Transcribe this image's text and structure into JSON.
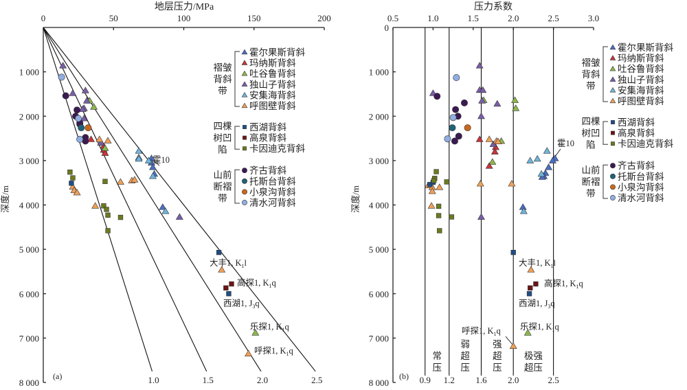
{
  "chart_data": [
    {
      "panel": "(a)",
      "type": "scatter",
      "title": "",
      "xlabel": "地层压力/MPa",
      "ylabel": "深度/m",
      "xlim": [
        0,
        200
      ],
      "ylim": [
        0,
        8000
      ],
      "y_inverted": true,
      "x_axis_position": "top",
      "xticks": [
        0,
        50,
        100,
        150,
        200
      ],
      "yticks": [
        1000,
        2000,
        3000,
        4000,
        5000,
        6000,
        7000,
        8000
      ],
      "ytick_labels": [
        "1 000",
        "2 000",
        "3 000",
        "4 000",
        "5 000",
        "6 000",
        "7 000",
        "8 000"
      ],
      "grid": false,
      "reference_lines": {
        "description": "pressure coefficient lines (MPa = coef × depth/100)",
        "coefficients": [
          1.0,
          1.5,
          2.0,
          2.5
        ],
        "labels": [
          "1.0",
          "1.5",
          "2.0",
          "2.5"
        ]
      },
      "annotations": [
        {
          "text": "霍10",
          "x": 76,
          "y": 2950
        },
        {
          "text_main": "大丰1, K",
          "sub": "1",
          "tail": "l",
          "x": 121,
          "y": 5460
        },
        {
          "text_main": "高探1, K",
          "sub": "1",
          "tail": "q",
          "x": 134,
          "y": 5780
        },
        {
          "text_main": "西湖1, J",
          "sub": "3",
          "tail": "q",
          "x": 132,
          "y": 6000
        },
        {
          "text_main": "乐探1, K",
          "sub": "1",
          "tail": "q",
          "x": 150,
          "y": 6880
        },
        {
          "text_main": "呼探1, K",
          "sub": "1",
          "tail": "q",
          "x": 146,
          "y": 7350
        }
      ],
      "series": [
        {
          "name": "霍尔果斯背斜",
          "group": "褶皱背斜带",
          "marker": "triangle",
          "color": "#4a6fc4",
          "points": [
            [
              77,
              2950
            ],
            [
              77,
              3050
            ],
            [
              78,
              3150
            ],
            [
              79,
              3300
            ],
            [
              85,
              4050
            ]
          ]
        },
        {
          "name": "玛纳斯背斜",
          "group": "褶皱背斜带",
          "marker": "triangle",
          "color": "#c8343c",
          "points": [
            [
              34,
              2520
            ],
            [
              43,
              2760
            ],
            [
              44,
              2830
            ],
            [
              43,
              2670
            ]
          ]
        },
        {
          "name": "吐谷鲁背斜",
          "group": "褶皱背斜带",
          "marker": "triangle",
          "color": "#8cb84c",
          "points": [
            [
              33,
              1650
            ],
            [
              36,
              1790
            ],
            [
              44,
              2720
            ],
            [
              151,
              6880
            ]
          ]
        },
        {
          "name": "独山子背斜",
          "group": "褶皱背斜带",
          "marker": "triangle",
          "color": "#7a5ea8",
          "points": [
            [
              14,
              860
            ],
            [
              21,
              1480
            ],
            [
              30,
              1420
            ],
            [
              31,
              1650
            ],
            [
              29,
              1820
            ],
            [
              28,
              1840
            ],
            [
              41,
              2600
            ],
            [
              29,
              2050
            ],
            [
              97,
              4270
            ]
          ]
        },
        {
          "name": "安集海背斜",
          "group": "褶皱背斜带",
          "marker": "triangle",
          "color": "#6fb4dc",
          "points": [
            [
              68,
              2780
            ],
            [
              68,
              2930
            ],
            [
              68,
              2960
            ],
            [
              75,
              3000
            ],
            [
              78,
              3350
            ],
            [
              87,
              4140
            ]
          ]
        },
        {
          "name": "呼图壁背斜",
          "group": "褶皱背斜带",
          "marker": "triangle",
          "color": "#f0a058",
          "points": [
            [
              40,
              2520
            ],
            [
              46,
              2550
            ],
            [
              55,
              3480
            ],
            [
              63,
              3450
            ],
            [
              65,
              3430
            ],
            [
              21,
              3590
            ],
            [
              22,
              3670
            ],
            [
              24,
              3720
            ],
            [
              37,
              4020
            ],
            [
              127,
              5460
            ],
            [
              146,
              7350
            ]
          ]
        },
        {
          "name": "西湖背斜",
          "group": "四棵树凹陷",
          "marker": "square",
          "color": "#1f4e86",
          "points": [
            [
              20,
              3510
            ],
            [
              125,
              5070
            ],
            [
              132,
              6000
            ]
          ]
        },
        {
          "name": "高泉背斜",
          "group": "四棵树凹陷",
          "marker": "square",
          "color": "#6e1414",
          "points": [
            [
              130,
              5870
            ],
            [
              134,
              5780
            ]
          ]
        },
        {
          "name": "卡因迪克背斜",
          "group": "四棵树凹陷",
          "marker": "square",
          "color": "#6b7a1e",
          "points": [
            [
              19,
              3260
            ],
            [
              21,
              3390
            ],
            [
              44,
              3470
            ],
            [
              43,
              4020
            ],
            [
              46,
              4230
            ],
            [
              55,
              4280
            ],
            [
              46,
              4580
            ],
            [
              45,
              4100
            ]
          ]
        },
        {
          "name": "齐古背斜",
          "group": "山前断褶带",
          "marker": "circle",
          "color": "#3b1a52",
          "points": [
            [
              16,
              1540
            ],
            [
              24,
              1860
            ],
            [
              23,
              2000
            ],
            [
              26,
              2180
            ],
            [
              30,
              2480
            ],
            [
              30,
              2560
            ],
            [
              26,
              2150
            ]
          ]
        },
        {
          "name": "托斯台背斜",
          "group": "山前断褶带",
          "marker": "circle",
          "color": "#1f6378",
          "points": [
            [
              27,
              2260
            ]
          ]
        },
        {
          "name": "小泉沟背斜",
          "group": "山前断褶带",
          "marker": "circle",
          "color": "#c8681e",
          "points": [
            [
              32,
              2260
            ]
          ]
        },
        {
          "name": "清水河背斜",
          "group": "山前断褶带",
          "marker": "circle",
          "color": "#90aee0",
          "points": [
            [
              13,
              1120
            ],
            [
              25,
              2050
            ],
            [
              26,
              2520
            ]
          ]
        }
      ]
    },
    {
      "panel": "(b)",
      "type": "scatter",
      "title": "",
      "xlabel": "压力系数",
      "ylabel": "深度/m",
      "xlim": [
        0.5,
        3.0
      ],
      "ylim": [
        0,
        8000
      ],
      "y_inverted": true,
      "x_axis_position": "top",
      "xticks": [
        0.5,
        1.0,
        1.5,
        2.0,
        2.5,
        3.0
      ],
      "xtick_labels": [
        "0.5",
        "1.0",
        "1.5",
        "2.0",
        "2.5",
        "3.0"
      ],
      "yticks": [
        0,
        1000,
        2000,
        3000,
        4000,
        5000,
        6000,
        7000,
        8000
      ],
      "ytick_labels": [
        "0",
        "1 000",
        "2 000",
        "3 000",
        "4 000",
        "5 000",
        "6 000",
        "7 000",
        "8 000"
      ],
      "grid": false,
      "boundary_lines": [
        0.9,
        1.2,
        1.6,
        2.0,
        2.5
      ],
      "boundary_labels": [
        "0.9",
        "1.2",
        "1.6",
        "2.0",
        "2.5"
      ],
      "zones": [
        {
          "label": "常压",
          "lines": [
            "常",
            "压"
          ],
          "range": [
            0.9,
            1.2
          ]
        },
        {
          "label": "弱超压",
          "lines": [
            "弱",
            "超",
            "压"
          ],
          "range": [
            1.2,
            1.6
          ]
        },
        {
          "label": "强超压",
          "lines": [
            "强",
            "超",
            "压"
          ],
          "range": [
            1.6,
            2.0
          ]
        },
        {
          "label": "极强超压",
          "lines": [
            "极强",
            "超压"
          ],
          "range": [
            2.0,
            2.5
          ]
        }
      ],
      "annotations": [
        {
          "text": "霍10",
          "x": 2.55,
          "y": 2950
        },
        {
          "text_main": "大丰1, K",
          "sub": "1",
          "tail": "l",
          "x": 2.22,
          "y": 5460
        },
        {
          "text_main": "高探1, K",
          "sub": "1",
          "tail": "q",
          "x": 2.32,
          "y": 5780
        },
        {
          "text_main": "西湖1, J",
          "sub": "3",
          "tail": "q",
          "x": 2.2,
          "y": 6000
        },
        {
          "text_main": "乐探1, K",
          "sub": "1",
          "tail": "q",
          "x": 2.2,
          "y": 6880
        },
        {
          "text_main": "呼探1, K",
          "sub": "1",
          "tail": "q",
          "x": 2.0,
          "y": 7180
        }
      ],
      "series": [
        {
          "name": "霍尔果斯背斜",
          "group": "褶皱背斜带",
          "marker": "triangle",
          "color": "#4a6fc4",
          "points": [
            [
              2.52,
              2950
            ],
            [
              2.49,
              3000
            ],
            [
              2.44,
              3150
            ],
            [
              2.4,
              3280
            ],
            [
              2.38,
              3350
            ],
            [
              2.36,
              3370
            ],
            [
              2.12,
              4050
            ]
          ]
        },
        {
          "name": "玛纳斯背斜",
          "group": "褶皱背斜带",
          "marker": "triangle",
          "color": "#c8343c",
          "points": [
            [
              1.58,
              2520
            ],
            [
              1.78,
              2700
            ],
            [
              1.77,
              2800
            ],
            [
              1.7,
              3120
            ]
          ]
        },
        {
          "name": "吐谷鲁背斜",
          "group": "褶皱背斜带",
          "marker": "triangle",
          "color": "#8cb84c",
          "points": [
            [
              1.63,
              1640
            ],
            [
              2.02,
              1640
            ],
            [
              2.03,
              1820
            ],
            [
              1.85,
              2560
            ],
            [
              1.74,
              3030
            ],
            [
              2.18,
              6880
            ]
          ]
        },
        {
          "name": "独山子背斜",
          "group": "褶皱背斜带",
          "marker": "triangle",
          "color": "#7a5ea8",
          "points": [
            [
              1.58,
              860
            ],
            [
              1.0,
              1480
            ],
            [
              1.58,
              1410
            ],
            [
              1.62,
              1410
            ],
            [
              1.61,
              1650
            ],
            [
              1.8,
              1720
            ],
            [
              1.6,
              2000
            ],
            [
              1.75,
              2630
            ],
            [
              1.6,
              4270
            ]
          ]
        },
        {
          "name": "安集海背斜",
          "group": "褶皱背斜带",
          "marker": "triangle",
          "color": "#6fb4dc",
          "points": [
            [
              2.42,
              2780
            ],
            [
              2.3,
              2960
            ],
            [
              2.21,
              3000
            ],
            [
              2.35,
              3300
            ],
            [
              2.13,
              4140
            ]
          ]
        },
        {
          "name": "呼图壁背斜",
          "group": "褶皱背斜带",
          "marker": "triangle",
          "color": "#f0a058",
          "points": [
            [
              1.7,
              2520
            ],
            [
              1.79,
              2560
            ],
            [
              1.81,
              2570
            ],
            [
              0.94,
              3560
            ],
            [
              0.99,
              3600
            ],
            [
              0.99,
              3690
            ],
            [
              1.08,
              3600
            ],
            [
              1.59,
              3520
            ],
            [
              1.98,
              3520
            ],
            [
              0.98,
              4020
            ],
            [
              2.22,
              5460
            ],
            [
              2.0,
              7180
            ]
          ]
        },
        {
          "name": "西湖背斜",
          "group": "四棵树凹陷",
          "marker": "square",
          "color": "#1f4e86",
          "points": [
            [
              0.96,
              3540
            ],
            [
              1.0,
              3490
            ],
            [
              2.0,
              5070
            ],
            [
              2.2,
              6000
            ]
          ]
        },
        {
          "name": "高泉背斜",
          "group": "四棵树凹陷",
          "marker": "square",
          "color": "#6e1414",
          "points": [
            [
              2.21,
              5870
            ],
            [
              2.28,
              5780
            ]
          ]
        },
        {
          "name": "卡因迪克背斜",
          "group": "四棵树凹陷",
          "marker": "square",
          "color": "#6b7a1e",
          "points": [
            [
              1.04,
              3250
            ],
            [
              1.02,
              3400
            ],
            [
              1.01,
              3450
            ],
            [
              1.17,
              3480
            ],
            [
              1.07,
              4030
            ],
            [
              1.07,
              4240
            ],
            [
              1.23,
              4270
            ],
            [
              1.08,
              4580
            ]
          ]
        },
        {
          "name": "齐古背斜",
          "group": "山前断褶带",
          "marker": "circle",
          "color": "#3b1a52",
          "points": [
            [
              1.05,
              1550
            ],
            [
              1.39,
              1700
            ],
            [
              1.28,
              1850
            ],
            [
              1.31,
              2000
            ],
            [
              1.32,
              2450
            ],
            [
              1.27,
              2560
            ]
          ]
        },
        {
          "name": "托斯台背斜",
          "group": "山前断褶带",
          "marker": "circle",
          "color": "#1f6378",
          "points": [
            [
              1.24,
              2260
            ]
          ]
        },
        {
          "name": "小泉沟背斜",
          "group": "山前断褶带",
          "marker": "circle",
          "color": "#c8681e",
          "points": [
            [
              1.43,
              2260
            ]
          ]
        },
        {
          "name": "清水河背斜",
          "group": "山前断褶带",
          "marker": "circle",
          "color": "#90aee0",
          "points": [
            [
              1.29,
              1130
            ],
            [
              1.25,
              2030
            ],
            [
              1.18,
              2510
            ]
          ]
        }
      ]
    }
  ],
  "legend": {
    "placement": "top-right",
    "groups": [
      {
        "label_lines": [
          "褶皱",
          "背斜",
          "带"
        ],
        "items": [
          {
            "name": "霍尔果斯背斜",
            "marker": "triangle",
            "color": "#4a6fc4"
          },
          {
            "name": "玛纳斯背斜",
            "marker": "triangle",
            "color": "#c8343c"
          },
          {
            "name": "吐谷鲁背斜",
            "marker": "triangle",
            "color": "#8cb84c"
          },
          {
            "name": "独山子背斜",
            "marker": "triangle",
            "color": "#7a5ea8"
          },
          {
            "name": "安集海背斜",
            "marker": "triangle",
            "color": "#6fb4dc"
          },
          {
            "name": "呼图壁背斜",
            "marker": "triangle",
            "color": "#f0a058"
          }
        ]
      },
      {
        "label_lines": [
          "四棵",
          "树凹",
          "陷"
        ],
        "items": [
          {
            "name": "西湖背斜",
            "marker": "square",
            "color": "#1f4e86"
          },
          {
            "name": "高泉背斜",
            "marker": "square",
            "color": "#6e1414"
          },
          {
            "name": "卡因迪克背斜",
            "marker": "square",
            "color": "#6b7a1e"
          }
        ]
      },
      {
        "label_lines": [
          "山前",
          "断褶",
          "带"
        ],
        "items": [
          {
            "name": "齐古背斜",
            "marker": "circle",
            "color": "#3b1a52"
          },
          {
            "name": "托斯台背斜",
            "marker": "circle",
            "color": "#1f6378"
          },
          {
            "name": "小泉沟背斜",
            "marker": "circle",
            "color": "#c8681e"
          },
          {
            "name": "清水河背斜",
            "marker": "circle",
            "color": "#90aee0"
          }
        ]
      }
    ]
  }
}
